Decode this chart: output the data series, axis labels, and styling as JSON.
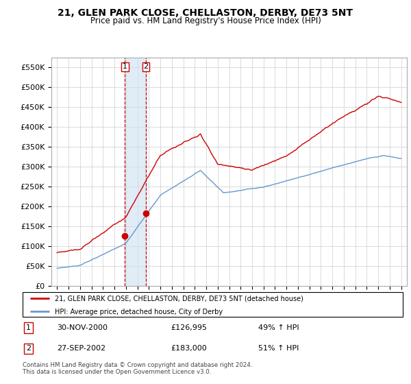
{
  "title": "21, GLEN PARK CLOSE, CHELLASTON, DERBY, DE73 5NT",
  "subtitle": "Price paid vs. HM Land Registry's House Price Index (HPI)",
  "legend_line1": "21, GLEN PARK CLOSE, CHELLASTON, DERBY, DE73 5NT (detached house)",
  "legend_line2": "HPI: Average price, detached house, City of Derby",
  "transaction1_date": "30-NOV-2000",
  "transaction1_price": "£126,995",
  "transaction1_hpi": "49% ↑ HPI",
  "transaction2_date": "27-SEP-2002",
  "transaction2_price": "£183,000",
  "transaction2_hpi": "51% ↑ HPI",
  "footer": "Contains HM Land Registry data © Crown copyright and database right 2024.\nThis data is licensed under the Open Government Licence v3.0.",
  "hpi_color": "#6699cc",
  "price_color": "#cc0000",
  "vline_color": "#cc0000",
  "vline_fill": "#cce0f0",
  "ylim": [
    0,
    575000
  ],
  "yticks": [
    0,
    50000,
    100000,
    150000,
    200000,
    250000,
    300000,
    350000,
    400000,
    450000,
    500000,
    550000
  ],
  "ytick_labels": [
    "£0",
    "£50K",
    "£100K",
    "£150K",
    "£200K",
    "£250K",
    "£300K",
    "£350K",
    "£400K",
    "£450K",
    "£500K",
    "£550K"
  ]
}
